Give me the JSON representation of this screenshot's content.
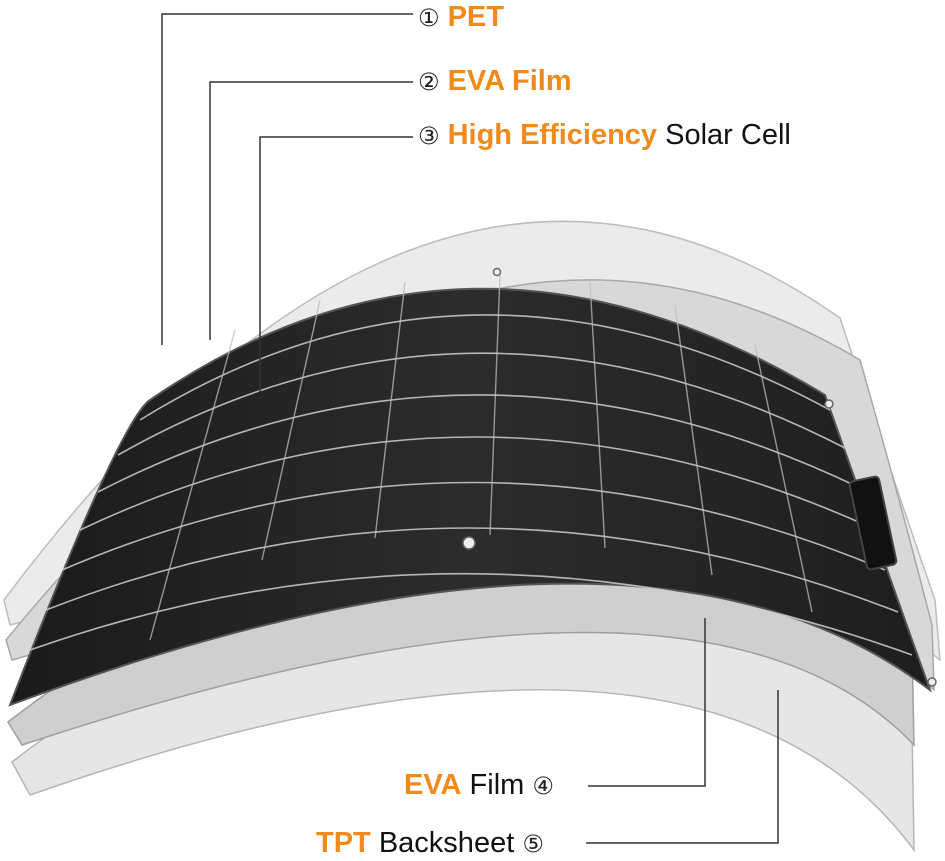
{
  "accent_color": "#f08a1c",
  "line_color": "#333333",
  "labels": [
    {
      "num": "①",
      "highlight": "PET",
      "rest": ""
    },
    {
      "num": "②",
      "highlight": "EVA Film",
      "rest": ""
    },
    {
      "num": "③",
      "highlight": "High Efficiency",
      "rest": " Solar Cell"
    },
    {
      "num": "④",
      "highlight": "EVA",
      "rest": " Film "
    },
    {
      "num": "⑤",
      "highlight": "TPT",
      "rest": " Backsheet "
    }
  ]
}
